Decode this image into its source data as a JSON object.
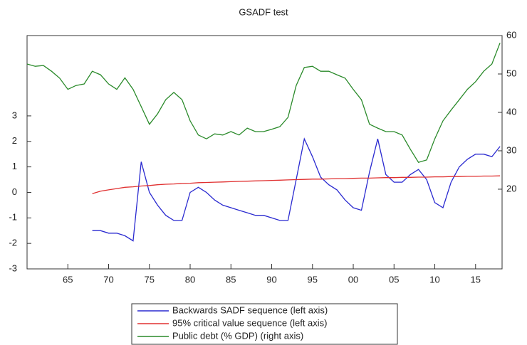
{
  "chart_data": {
    "type": "line",
    "title": "GSADF test",
    "x": [
      1960,
      1961,
      1962,
      1963,
      1964,
      1965,
      1966,
      1967,
      1968,
      1969,
      1970,
      1971,
      1972,
      1973,
      1974,
      1975,
      1976,
      1977,
      1978,
      1979,
      1980,
      1981,
      1982,
      1983,
      1984,
      1985,
      1986,
      1987,
      1988,
      1989,
      1990,
      1991,
      1992,
      1993,
      1994,
      1995,
      1996,
      1997,
      1998,
      1999,
      2000,
      2001,
      2002,
      2003,
      2004,
      2005,
      2006,
      2007,
      2008,
      2009,
      2010,
      2011,
      2012,
      2013,
      2014,
      2015,
      2016,
      2017,
      2018
    ],
    "series": [
      {
        "name": "Backwards SADF sequence (left axis)",
        "color": "#2a2ad0",
        "values": [
          null,
          null,
          null,
          null,
          null,
          null,
          null,
          null,
          -1.5,
          -1.5,
          -1.6,
          -1.6,
          -1.7,
          -1.9,
          1.2,
          0.0,
          -0.5,
          -0.9,
          -1.1,
          -1.1,
          0.0,
          0.2,
          0.0,
          -0.3,
          -0.5,
          -0.6,
          -0.7,
          -0.8,
          -0.9,
          -0.9,
          -1.0,
          -1.1,
          -1.1,
          0.5,
          2.1,
          1.4,
          0.6,
          0.3,
          0.1,
          -0.3,
          -0.6,
          -0.7,
          0.8,
          2.1,
          0.7,
          0.4,
          0.4,
          0.7,
          0.9,
          0.5,
          -0.4,
          -0.6,
          0.4,
          1.0,
          1.3,
          1.5,
          1.5,
          1.4,
          1.8
        ]
      },
      {
        "name": "95% critical value sequence (left axis)",
        "color": "#e03030",
        "values": [
          null,
          null,
          null,
          null,
          null,
          null,
          null,
          null,
          -0.05,
          0.05,
          0.1,
          0.15,
          0.2,
          0.22,
          0.25,
          0.27,
          0.3,
          0.32,
          0.33,
          0.35,
          0.36,
          0.38,
          0.39,
          0.4,
          0.41,
          0.42,
          0.43,
          0.44,
          0.45,
          0.46,
          0.47,
          0.48,
          0.49,
          0.5,
          0.51,
          0.52,
          0.52,
          0.53,
          0.54,
          0.54,
          0.55,
          0.56,
          0.56,
          0.57,
          0.58,
          0.58,
          0.59,
          0.59,
          0.6,
          0.6,
          0.61,
          0.61,
          0.62,
          0.62,
          0.63,
          0.63,
          0.64,
          0.64,
          0.65
        ]
      },
      {
        "name": "Public debt (% GDP) (right axis)",
        "color": "#2a8a2a",
        "axis": "y2",
        "values": [
          52.6,
          52,
          52.2,
          50.7,
          48.9,
          46,
          47,
          47.4,
          50.7,
          49.8,
          47.4,
          46,
          49,
          46,
          41.5,
          36.9,
          39.6,
          43.3,
          45.2,
          43.3,
          37.8,
          34.1,
          33.1,
          34.4,
          34.1,
          35,
          34.1,
          35.9,
          35,
          35,
          35.6,
          36.3,
          38.7,
          47,
          51.7,
          52,
          50.7,
          50.7,
          49.8,
          48.9,
          46,
          43.3,
          36.9,
          35.9,
          35,
          35,
          34.1,
          30.4,
          27,
          27.6,
          33.1,
          37.8,
          40.6,
          43.3,
          46,
          48,
          50.7,
          52.6,
          58.1
        ]
      }
    ],
    "xlim": [
      1960,
      2018.25
    ],
    "xticks": [
      {
        "value": 1965,
        "label": "65"
      },
      {
        "value": 1970,
        "label": "70"
      },
      {
        "value": 1975,
        "label": "75"
      },
      {
        "value": 1980,
        "label": "80"
      },
      {
        "value": 1985,
        "label": "85"
      },
      {
        "value": 1990,
        "label": "90"
      },
      {
        "value": 1995,
        "label": "95"
      },
      {
        "value": 2000,
        "label": "00"
      },
      {
        "value": 2005,
        "label": "05"
      },
      {
        "value": 2010,
        "label": "10"
      },
      {
        "value": 2015,
        "label": "15"
      }
    ],
    "ylim": [
      -3,
      6.15
    ],
    "yticks": [
      -3,
      -2,
      -1,
      0,
      1,
      2,
      3
    ],
    "y2lim": [
      -0.75,
      60
    ],
    "y2ticks": [
      20,
      30,
      40,
      50,
      60
    ]
  }
}
